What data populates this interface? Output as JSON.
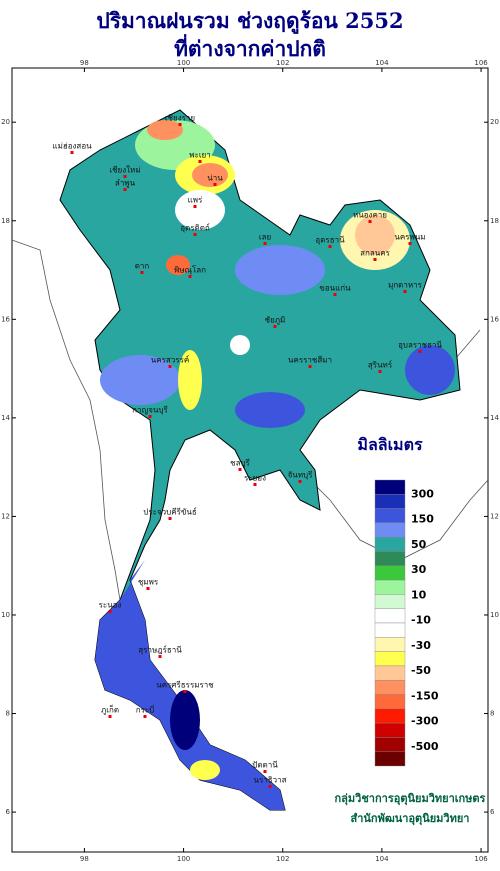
{
  "map": {
    "title": [
      "ปริมาณฝนรวม ช่วงฤดูร้อน 2552",
      "ที่ต่างจากค่าปกติ"
    ],
    "lonlim": [
      96.54,
      106.14
    ],
    "latlim": [
      5.19,
      21.1
    ],
    "lonticks": [
      98,
      100,
      102,
      104,
      106
    ],
    "latticks": [
      6,
      8,
      10,
      12,
      14,
      16,
      18,
      20
    ],
    "legend": {
      "title": "มิลลิเมตร",
      "colors": [
        "#00007a",
        "#1a2fb8",
        "#3d55dd",
        "#6f8cf5",
        "#2aa6a0",
        "#2e8b57",
        "#3cc83c",
        "#9cf59c",
        "#d2fad2",
        "#ffffff",
        "#ffffff",
        "#fff7b0",
        "#ffff50",
        "#ffc896",
        "#ff9060",
        "#ff6a3a",
        "#ff1a00",
        "#d00000",
        "#a00000",
        "#6a0000"
      ],
      "labels": [
        300,
        150,
        50,
        30,
        10,
        -10,
        -30,
        -50,
        -150,
        -300,
        -500
      ]
    },
    "provinces": [
      "เชียงราย",
      "พะเยา",
      "น่าน",
      "แม่ฮ่องสอน",
      "เชียงใหม่",
      "ลำพูน",
      "แพร่",
      "อุตรดิตถ์",
      "ตาก",
      "พิษณุโลก",
      "หนองคาย",
      "อุดรธานี",
      "สกลนคร",
      "นครพนม",
      "มุกดาหาร",
      "เลย",
      "ขอนแก่น",
      "ชัยภูมิ",
      "นครราชสีมา",
      "สุรินทร์",
      "อุบลราชธานี",
      "ชลบุรี",
      "ระยอง",
      "จันทบุรี",
      "ประจวบคีรีขันธ์",
      "ชุมพร",
      "ระนอง",
      "สุราษฎร์ธานี",
      "ภูเก็ต",
      "กระบี่",
      "นครศรีธรรมราช",
      "ปัตตานี",
      "นราธิวาส",
      "กาญจนบุรี",
      "นครสวรรค์"
    ],
    "credits": [
      "กลุ่มวิชาการอุตุนิยมวิทยาเกษตร",
      "สำนักพัฒนาอุตุนิยมวิทยา"
    ]
  }
}
